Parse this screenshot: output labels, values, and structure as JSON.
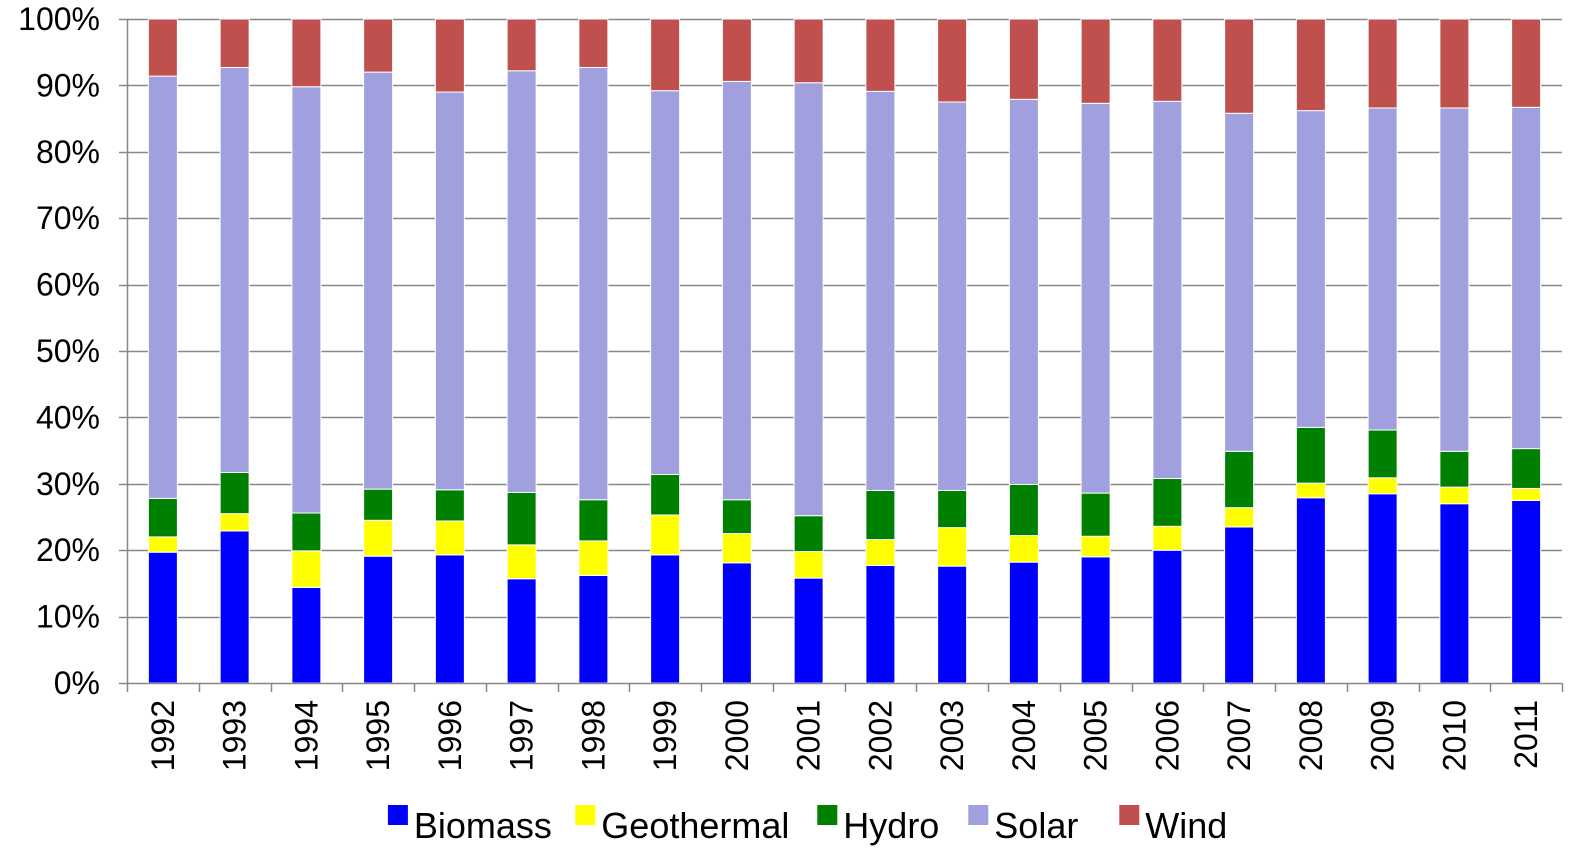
{
  "chart_data": {
    "type": "bar",
    "stacked": true,
    "normalized": true,
    "categories": [
      "1992",
      "1993",
      "1994",
      "1995",
      "1996",
      "1997",
      "1998",
      "1999",
      "2000",
      "2001",
      "2002",
      "2003",
      "2004",
      "2005",
      "2006",
      "2007",
      "2008",
      "2009",
      "2010",
      "2011"
    ],
    "series": [
      {
        "name": "Biomass",
        "color": "#0000FF",
        "values": [
          19.7,
          22.9,
          14.4,
          19.1,
          19.3,
          15.7,
          16.2,
          19.3,
          18.1,
          15.8,
          17.7,
          17.6,
          18.2,
          19.0,
          20.0,
          23.5,
          27.9,
          28.5,
          27.0,
          27.5
        ]
      },
      {
        "name": "Geothermal",
        "color": "#FFFF00",
        "values": [
          2.3,
          2.6,
          5.5,
          5.4,
          5.1,
          5.1,
          5.2,
          6.0,
          4.4,
          4.0,
          3.9,
          5.8,
          4.0,
          3.1,
          3.6,
          2.9,
          2.2,
          2.4,
          2.5,
          1.8
        ]
      },
      {
        "name": "Hydro",
        "color": "#008000",
        "values": [
          5.8,
          6.2,
          5.7,
          4.7,
          4.7,
          7.9,
          6.2,
          6.1,
          5.1,
          5.4,
          7.4,
          5.6,
          7.7,
          6.5,
          7.2,
          8.5,
          8.4,
          7.2,
          5.4,
          6.0
        ]
      },
      {
        "name": "Solar",
        "color": "#A0A0DE",
        "values": [
          63.6,
          61.0,
          64.2,
          62.8,
          59.9,
          63.5,
          65.1,
          57.8,
          63.0,
          65.2,
          60.1,
          58.5,
          58.0,
          58.7,
          56.8,
          50.9,
          47.7,
          48.5,
          51.7,
          51.4
        ]
      },
      {
        "name": "Wind",
        "color": "#C0504D",
        "values": [
          8.6,
          7.3,
          10.2,
          8.0,
          11.0,
          7.8,
          7.3,
          10.8,
          9.4,
          9.6,
          10.9,
          12.5,
          12.1,
          12.7,
          12.4,
          14.2,
          13.8,
          13.4,
          13.4,
          13.3
        ]
      }
    ],
    "y_ticks": [
      "0%",
      "10%",
      "20%",
      "30%",
      "40%",
      "50%",
      "60%",
      "70%",
      "80%",
      "90%",
      "100%"
    ],
    "ylim": [
      0,
      100
    ],
    "y_unit": "%",
    "title": "",
    "xlabel": "",
    "ylabel": "",
    "grid": true,
    "legend_position": "bottom",
    "colors": {
      "gridline": "#888888",
      "axis": "#888888",
      "bar_stroke": "#ffffff"
    }
  }
}
